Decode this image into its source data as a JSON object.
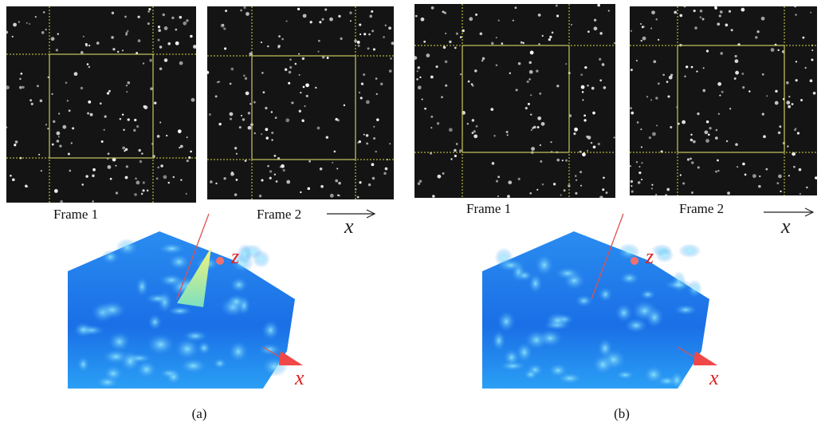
{
  "panels": [
    {
      "frames": [
        {
          "label": "Frame 1"
        },
        {
          "label": "Frame 2"
        }
      ],
      "direction_label": "x",
      "surface_axes": {
        "z": "z",
        "x": "x"
      },
      "caption": "(a)"
    },
    {
      "frames": [
        {
          "label": "Frame 1"
        },
        {
          "label": "Frame 2"
        }
      ],
      "direction_label": "x",
      "surface_axes": {
        "z": "z",
        "x": "x"
      },
      "caption": "(b)"
    }
  ]
}
